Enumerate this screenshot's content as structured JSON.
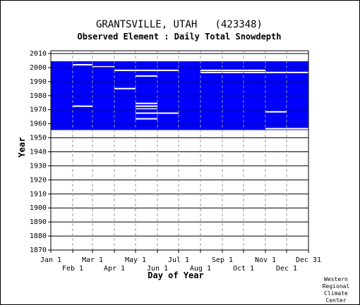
{
  "chart_data": {
    "type": "heatmap",
    "title": "GRANTSVILLE, UTAH   (423348)",
    "subtitle": "Observed Element : Daily Total Snowdepth",
    "xlabel": "Day of Year",
    "ylabel": "Year",
    "xlim": [
      1,
      366
    ],
    "ylim": [
      1870,
      2012
    ],
    "grid": true,
    "colors": {
      "data": "#0000ff",
      "gap": "#ffffff",
      "grid": "#999999"
    },
    "x_ticks_top": [
      {
        "label": "Jan 1",
        "day": 1
      },
      {
        "label": "Mar 1",
        "day": 60
      },
      {
        "label": "May 1",
        "day": 121
      },
      {
        "label": "Jul 1",
        "day": 182
      },
      {
        "label": "Sep 1",
        "day": 244
      },
      {
        "label": "Nov 1",
        "day": 305
      },
      {
        "label": "Dec 31",
        "day": 366
      }
    ],
    "x_ticks_bottom": [
      {
        "label": "Feb 1",
        "day": 32
      },
      {
        "label": "Apr 1",
        "day": 91
      },
      {
        "label": "Jun 1",
        "day": 152
      },
      {
        "label": "Aug 1",
        "day": 213
      },
      {
        "label": "Oct 1",
        "day": 274
      },
      {
        "label": "Dec 1",
        "day": 335
      }
    ],
    "y_ticks": [
      "2010",
      "2000",
      "1990",
      "1980",
      "1970",
      "1960",
      "1950",
      "1940",
      "1930",
      "1920",
      "1910",
      "1900",
      "1890",
      "1880",
      "1870"
    ],
    "coverage": {
      "start_year": 1955.5,
      "end_year": 2005.5
    },
    "missing_periods": [
      {
        "year": 2005.0,
        "start_day": 1,
        "end_day": 366
      },
      {
        "year": 2002.0,
        "start_day": 32,
        "end_day": 60
      },
      {
        "year": 2000.5,
        "start_day": 60,
        "end_day": 91
      },
      {
        "year": 1998.0,
        "start_day": 91,
        "end_day": 182
      },
      {
        "year": 1998.0,
        "start_day": 213,
        "end_day": 305
      },
      {
        "year": 1996.5,
        "start_day": 213,
        "end_day": 366
      },
      {
        "year": 1994.0,
        "start_day": 121,
        "end_day": 152
      },
      {
        "year": 1985.0,
        "start_day": 91,
        "end_day": 121
      },
      {
        "year": 1974.5,
        "start_day": 121,
        "end_day": 152
      },
      {
        "year": 1972.5,
        "start_day": 32,
        "end_day": 60
      },
      {
        "year": 1972.5,
        "start_day": 121,
        "end_day": 152
      },
      {
        "year": 1970.5,
        "start_day": 121,
        "end_day": 152
      },
      {
        "year": 1967.5,
        "start_day": 121,
        "end_day": 182
      },
      {
        "year": 1968.5,
        "start_day": 305,
        "end_day": 335
      },
      {
        "year": 1963.5,
        "start_day": 121,
        "end_day": 152
      },
      {
        "year": 1956.5,
        "start_day": 305,
        "end_day": 335
      },
      {
        "year": 1956.5,
        "start_day": 335,
        "end_day": 366
      }
    ]
  },
  "credit": [
    "Western",
    "Regional",
    "Climate",
    "Center"
  ]
}
